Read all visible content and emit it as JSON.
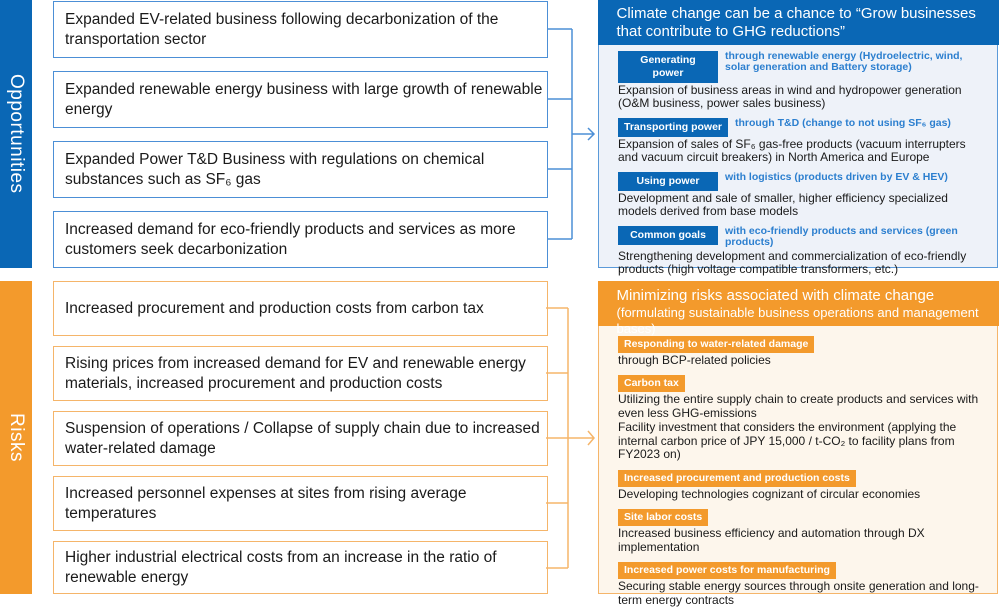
{
  "colors": {
    "blue": "#0a67b5",
    "blue_light_bg": "#eef2f9",
    "orange": "#f39a2c",
    "orange_light_bg": "#fdf6ec"
  },
  "opportunities": {
    "label": "Opportunities",
    "items": [
      "Expanded EV-related business following decarbonization of the transportation sector",
      "Expanded renewable energy business with large growth of renewable energy",
      "Expanded Power T&D Business with regulations on chemical substances such as SF₆ gas",
      "Increased demand for eco-friendly products and services as more customers seek decarbonization"
    ],
    "panel": {
      "title": "Climate change can be a chance to “Grow businesses that contribute to GHG reductions”",
      "items": [
        {
          "tag": "Generating power",
          "sub": "through renewable energy (Hydroelectric, wind, solar generation and Battery storage)",
          "desc": "Expansion of business areas in wind and hydropower generation (O&M business, power sales business)"
        },
        {
          "tag": "Transporting power",
          "sub": "through T&D (change to not using SF₆ gas)",
          "desc": "Expansion of sales of SF₆ gas-free products (vacuum interrupters and vacuum circuit breakers) in North America and Europe"
        },
        {
          "tag": "Using power",
          "sub": "with logistics (products driven by EV & HEV)",
          "desc": "Development and sale of smaller, higher efficiency specialized models derived from base models"
        },
        {
          "tag": "Common goals",
          "sub": "with eco-friendly products and services  (green products)",
          "desc": "Strengthening development and commercialization of eco-friendly products (high voltage compatible transformers, etc.)"
        }
      ]
    }
  },
  "risks": {
    "label": "Risks",
    "items": [
      "Increased procurement and production costs from carbon tax",
      "Rising prices from increased demand for EV and renewable energy materials, increased procurement and production costs",
      "Suspension of operations / Collapse of supply chain due to increased water-related damage",
      "Increased personnel expenses at sites from rising average temperatures",
      "Higher industrial electrical costs from an increase in the ratio of renewable energy"
    ],
    "panel": {
      "title": "Minimizing risks associated with climate change",
      "subtitle": "(formulating sustainable business operations and management bases)",
      "items": [
        {
          "tag": "Responding to water-related damage",
          "desc": [
            "through BCP-related policies"
          ]
        },
        {
          "tag": "Carbon tax",
          "desc": [
            "Utilizing the entire supply chain to create products and services with even less GHG-emissions",
            "Facility investment that considers the environment (applying the internal carbon price of JPY 15,000 / t-CO₂ to facility plans from FY2023 on)"
          ]
        },
        {
          "tag": "Increased procurement and production costs",
          "desc": [
            "Developing technologies cognizant of circular economies"
          ]
        },
        {
          "tag": "Site labor costs",
          "desc": [
            "Increased business efficiency and automation through DX implementation"
          ]
        },
        {
          "tag": "Increased power costs for manufacturing",
          "desc": [
            "Securing stable energy sources through onsite generation and long-term energy contracts"
          ]
        }
      ]
    }
  }
}
